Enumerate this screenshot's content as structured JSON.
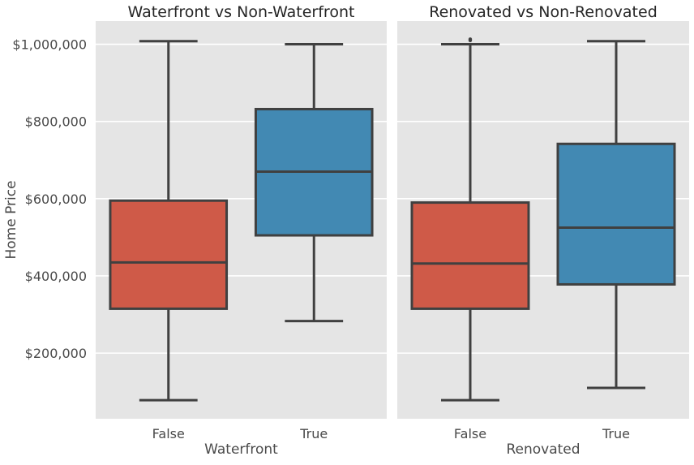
{
  "colors": {
    "background": "#e5e5e5",
    "grid": "#ffffff",
    "box_line": "#404040",
    "false_fill": "#cf5a48",
    "true_fill": "#4289b3"
  },
  "chart_data": {
    "type": "box",
    "shared_y": {
      "label": "Home Price",
      "ylim": [
        30000,
        1060000
      ],
      "ticks": [
        200000,
        400000,
        600000,
        800000,
        1000000
      ],
      "tick_labels": [
        "$200,000",
        "$400,000",
        "$600,000",
        "$800,000",
        "$1,000,000"
      ]
    },
    "grid": true,
    "panels": [
      {
        "title": "Waterfront vs Non-Waterfront",
        "xlabel": "Waterfront",
        "categories": [
          "False",
          "True"
        ],
        "boxes": [
          {
            "category": "False",
            "whisker_low": 78000,
            "q1": 315000,
            "median": 435000,
            "q3": 595000,
            "whisker_high": 1008000,
            "color": "#cf5a48"
          },
          {
            "category": "True",
            "whisker_low": 283000,
            "q1": 505000,
            "median": 670000,
            "q3": 832000,
            "whisker_high": 1000000,
            "color": "#4289b3"
          }
        ]
      },
      {
        "title": "Renovated vs Non-Renovated",
        "xlabel": "Renovated",
        "categories": [
          "False",
          "True"
        ],
        "boxes": [
          {
            "category": "False",
            "whisker_low": 78000,
            "q1": 315000,
            "median": 432000,
            "q3": 590000,
            "whisker_high": 1000000,
            "outliers": [
              1010000,
              1013000
            ],
            "color": "#cf5a48"
          },
          {
            "category": "True",
            "whisker_low": 110000,
            "q1": 378000,
            "median": 525000,
            "q3": 742000,
            "whisker_high": 1008000,
            "color": "#4289b3"
          }
        ]
      }
    ]
  }
}
